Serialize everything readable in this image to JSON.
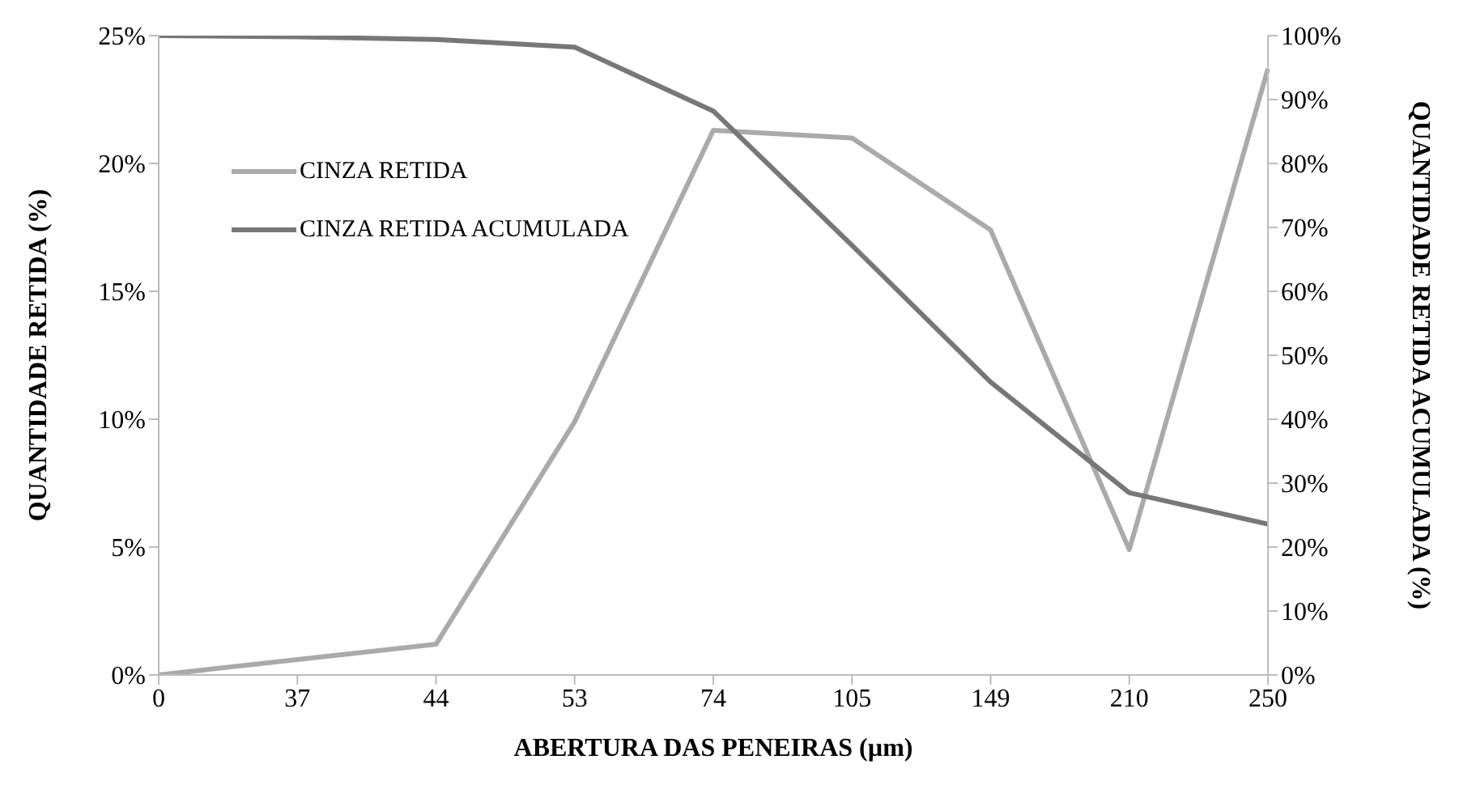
{
  "chart_data": {
    "type": "line",
    "xlabel": "ABERTURA DAS PENEIRAS (µm)",
    "ylabel": "QUANTIDADE RETIDA (%)",
    "y2label": "QUANTIDADE RETIDA ACUMULADA (%)",
    "categories": [
      "0",
      "37",
      "44",
      "53",
      "74",
      "105",
      "149",
      "210",
      "250"
    ],
    "series": [
      {
        "name": "CINZA RETIDA",
        "color": "#aaaaaa",
        "values": [
          0,
          0.6,
          1.2,
          9.9,
          21.3,
          21.0,
          17.4,
          4.9,
          23.7
        ]
      },
      {
        "name": "CINZA RETIDA ACUMULADA",
        "color": "#777777",
        "axis": "y2",
        "values": [
          100,
          99.8,
          99.4,
          98.2,
          88.2,
          67.2,
          45.8,
          28.5,
          23.6
        ]
      }
    ],
    "ylim": [
      0,
      25
    ],
    "yticks": [
      {
        "value": 0,
        "label": "0%"
      },
      {
        "value": 5,
        "label": "5%"
      },
      {
        "value": 10,
        "label": "10%"
      },
      {
        "value": 15,
        "label": "15%"
      },
      {
        "value": 20,
        "label": "20%"
      },
      {
        "value": 25,
        "label": "25%"
      }
    ],
    "y2lim": [
      0,
      100
    ],
    "y2ticks": [
      {
        "value": 0,
        "label": "0%"
      },
      {
        "value": 10,
        "label": "10%"
      },
      {
        "value": 20,
        "label": "20%"
      },
      {
        "value": 30,
        "label": "30%"
      },
      {
        "value": 40,
        "label": "40%"
      },
      {
        "value": 50,
        "label": "50%"
      },
      {
        "value": 60,
        "label": "60%"
      },
      {
        "value": 70,
        "label": "70%"
      },
      {
        "value": 80,
        "label": "80%"
      },
      {
        "value": 90,
        "label": "90%"
      },
      {
        "value": 100,
        "label": "100%"
      }
    ],
    "grid": false,
    "legend": "top left",
    "marker": "none",
    "line_style": "solid"
  }
}
